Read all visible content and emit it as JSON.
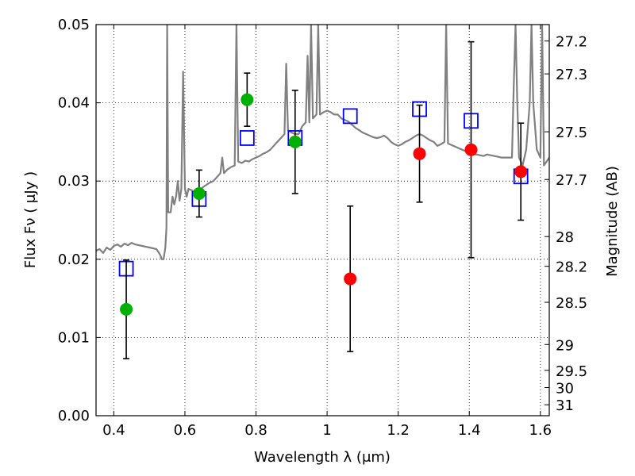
{
  "chart_data": {
    "type": "scatter",
    "xlabel": "Wavelength  λ (μm)",
    "ylabel": "Flux  Fν  ( μJy )",
    "ylabel_right": "Magnitude (AB)",
    "xlim": [
      0.35,
      1.625
    ],
    "ylim": [
      0.0,
      0.05
    ],
    "grid": true,
    "x_ticks": [
      0.4,
      0.6,
      0.8,
      1.0,
      1.2,
      1.4,
      1.6
    ],
    "x_tick_labels": [
      "0.4",
      "0.6",
      "0.8",
      "1",
      "1.2",
      "1.4",
      "1.6"
    ],
    "y_ticks": [
      0.0,
      0.01,
      0.02,
      0.03,
      0.04,
      0.05
    ],
    "y_tick_labels": [
      "0.00",
      "0.01",
      "0.02",
      "0.03",
      "0.04",
      "0.05"
    ],
    "right_ticks": [
      {
        "label": "27.2",
        "flux": 0.0479
      },
      {
        "label": "27.3",
        "flux": 0.0437
      },
      {
        "label": "27.5",
        "flux": 0.0363
      },
      {
        "label": "27.7",
        "flux": 0.0302
      },
      {
        "label": "28",
        "flux": 0.0229
      },
      {
        "label": "28.2",
        "flux": 0.0191
      },
      {
        "label": "28.5",
        "flux": 0.0145
      },
      {
        "label": "29",
        "flux": 0.0091
      },
      {
        "label": "29.5",
        "flux": 0.0058
      },
      {
        "label": "30",
        "flux": 0.0036
      },
      {
        "label": "31",
        "flux": 0.0014
      }
    ],
    "series": [
      {
        "kind": "line",
        "color": "#808080",
        "points": [
          [
            0.35,
            0.0211
          ],
          [
            0.36,
            0.0213
          ],
          [
            0.37,
            0.0208
          ],
          [
            0.38,
            0.0215
          ],
          [
            0.39,
            0.0212
          ],
          [
            0.4,
            0.0217
          ],
          [
            0.41,
            0.0219
          ],
          [
            0.42,
            0.0216
          ],
          [
            0.43,
            0.022
          ],
          [
            0.44,
            0.0218
          ],
          [
            0.45,
            0.0221
          ],
          [
            0.46,
            0.0219
          ],
          [
            0.47,
            0.0218
          ],
          [
            0.48,
            0.0217
          ],
          [
            0.49,
            0.0216
          ],
          [
            0.5,
            0.0215
          ],
          [
            0.51,
            0.0214
          ],
          [
            0.52,
            0.0213
          ],
          [
            0.53,
            0.0206
          ],
          [
            0.535,
            0.02
          ],
          [
            0.54,
            0.02
          ],
          [
            0.545,
            0.0215
          ],
          [
            0.548,
            0.024
          ],
          [
            0.55,
            0.05
          ],
          [
            0.553,
            0.026
          ],
          [
            0.56,
            0.026
          ],
          [
            0.565,
            0.028
          ],
          [
            0.57,
            0.027
          ],
          [
            0.575,
            0.028
          ],
          [
            0.58,
            0.03
          ],
          [
            0.585,
            0.0275
          ],
          [
            0.59,
            0.029
          ],
          [
            0.595,
            0.044
          ],
          [
            0.6,
            0.029
          ],
          [
            0.605,
            0.028
          ],
          [
            0.61,
            0.029
          ],
          [
            0.62,
            0.0288
          ],
          [
            0.63,
            0.0283
          ],
          [
            0.64,
            0.0287
          ],
          [
            0.65,
            0.0292
          ],
          [
            0.66,
            0.0295
          ],
          [
            0.67,
            0.0298
          ],
          [
            0.68,
            0.03
          ],
          [
            0.69,
            0.0305
          ],
          [
            0.7,
            0.031
          ],
          [
            0.705,
            0.033
          ],
          [
            0.71,
            0.031
          ],
          [
            0.72,
            0.0315
          ],
          [
            0.73,
            0.0318
          ],
          [
            0.74,
            0.032
          ],
          [
            0.745,
            0.05
          ],
          [
            0.75,
            0.0325
          ],
          [
            0.76,
            0.0323
          ],
          [
            0.77,
            0.0326
          ],
          [
            0.78,
            0.0325
          ],
          [
            0.79,
            0.0328
          ],
          [
            0.8,
            0.033
          ],
          [
            0.81,
            0.0332
          ],
          [
            0.82,
            0.0335
          ],
          [
            0.83,
            0.0337
          ],
          [
            0.84,
            0.034
          ],
          [
            0.85,
            0.0345
          ],
          [
            0.86,
            0.035
          ],
          [
            0.87,
            0.0355
          ],
          [
            0.88,
            0.036
          ],
          [
            0.885,
            0.045
          ],
          [
            0.89,
            0.0365
          ],
          [
            0.9,
            0.0362
          ],
          [
            0.91,
            0.036
          ],
          [
            0.92,
            0.036
          ],
          [
            0.93,
            0.037
          ],
          [
            0.94,
            0.0375
          ],
          [
            0.945,
            0.046
          ],
          [
            0.95,
            0.0375
          ],
          [
            0.955,
            0.05
          ],
          [
            0.96,
            0.038
          ],
          [
            0.97,
            0.0385
          ],
          [
            0.975,
            0.05
          ],
          [
            0.98,
            0.0385
          ],
          [
            0.99,
            0.0388
          ],
          [
            1.0,
            0.039
          ],
          [
            1.01,
            0.0388
          ],
          [
            1.02,
            0.0385
          ],
          [
            1.03,
            0.0385
          ],
          [
            1.04,
            0.038
          ],
          [
            1.05,
            0.0378
          ],
          [
            1.06,
            0.0376
          ],
          [
            1.07,
            0.0372
          ],
          [
            1.08,
            0.0368
          ],
          [
            1.09,
            0.0365
          ],
          [
            1.1,
            0.0362
          ],
          [
            1.11,
            0.036
          ],
          [
            1.12,
            0.0358
          ],
          [
            1.13,
            0.0356
          ],
          [
            1.14,
            0.0355
          ],
          [
            1.15,
            0.0356
          ],
          [
            1.16,
            0.0358
          ],
          [
            1.17,
            0.0355
          ],
          [
            1.18,
            0.035
          ],
          [
            1.19,
            0.0347
          ],
          [
            1.2,
            0.0345
          ],
          [
            1.21,
            0.0347
          ],
          [
            1.22,
            0.035
          ],
          [
            1.23,
            0.0352
          ],
          [
            1.24,
            0.0355
          ],
          [
            1.25,
            0.0358
          ],
          [
            1.26,
            0.036
          ],
          [
            1.27,
            0.0358
          ],
          [
            1.28,
            0.0355
          ],
          [
            1.29,
            0.0352
          ],
          [
            1.3,
            0.035
          ],
          [
            1.31,
            0.0345
          ],
          [
            1.32,
            0.0347
          ],
          [
            1.33,
            0.035
          ],
          [
            1.335,
            0.05
          ],
          [
            1.34,
            0.0348
          ],
          [
            1.35,
            0.0346
          ],
          [
            1.36,
            0.0344
          ],
          [
            1.37,
            0.0342
          ],
          [
            1.38,
            0.034
          ],
          [
            1.39,
            0.0338
          ],
          [
            1.4,
            0.0336
          ],
          [
            1.41,
            0.0334
          ],
          [
            1.42,
            0.0334
          ],
          [
            1.43,
            0.0333
          ],
          [
            1.44,
            0.0332
          ],
          [
            1.45,
            0.0334
          ],
          [
            1.46,
            0.0333
          ],
          [
            1.47,
            0.0332
          ],
          [
            1.48,
            0.0331
          ],
          [
            1.49,
            0.033
          ],
          [
            1.5,
            0.033
          ],
          [
            1.51,
            0.033
          ],
          [
            1.52,
            0.033
          ],
          [
            1.525,
            0.042
          ],
          [
            1.53,
            0.05
          ],
          [
            1.535,
            0.04
          ],
          [
            1.54,
            0.033
          ],
          [
            1.55,
            0.032
          ],
          [
            1.56,
            0.034
          ],
          [
            1.57,
            0.04
          ],
          [
            1.575,
            0.05
          ],
          [
            1.58,
            0.04
          ],
          [
            1.59,
            0.034
          ],
          [
            1.6,
            0.033
          ],
          [
            1.605,
            0.05
          ],
          [
            1.61,
            0.032
          ],
          [
            1.625,
            0.033
          ]
        ]
      },
      {
        "kind": "points",
        "marker": "square-open",
        "color": "#0000ff",
        "points": [
          [
            0.435,
            0.0188
          ],
          [
            0.64,
            0.0277
          ],
          [
            0.775,
            0.0355
          ],
          [
            0.91,
            0.0355
          ],
          [
            1.065,
            0.0383
          ],
          [
            1.26,
            0.0392
          ],
          [
            1.405,
            0.0377
          ],
          [
            1.545,
            0.0306
          ]
        ]
      },
      {
        "kind": "points",
        "marker": "circle",
        "color": "#00b000",
        "points": [
          [
            0.435,
            0.0136,
            0.0063
          ],
          [
            0.64,
            0.0284,
            0.003
          ],
          [
            0.775,
            0.0404,
            0.0034
          ],
          [
            0.91,
            0.035,
            0.0066
          ]
        ]
      },
      {
        "kind": "points",
        "marker": "circle",
        "color": "#ff0000",
        "points": [
          [
            1.065,
            0.0175,
            0.0093
          ],
          [
            1.26,
            0.0335,
            0.0062
          ],
          [
            1.405,
            0.034,
            0.0138
          ],
          [
            1.545,
            0.0312,
            0.0062
          ]
        ]
      }
    ]
  }
}
